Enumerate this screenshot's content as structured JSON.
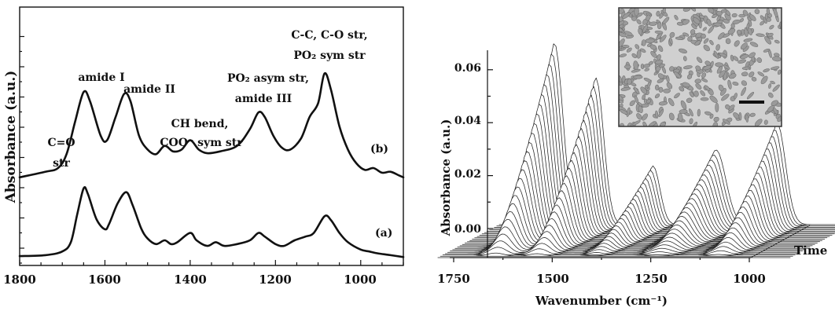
{
  "chart_data": [
    {
      "type": "line",
      "xlabel": "",
      "ylabel": "Absorbance (a.u.)",
      "xlim": [
        1800,
        900
      ],
      "x_ticks": [
        "1800",
        "1600",
        "1400",
        "1200",
        "1000"
      ],
      "y_ticks_labeled": false,
      "series": [
        {
          "name": "(a)",
          "points": [
            [
              1800,
              0.05
            ],
            [
              1740,
              0.06
            ],
            [
              1700,
              0.1
            ],
            [
              1680,
              0.2
            ],
            [
              1665,
              0.5
            ],
            [
              1650,
              0.78
            ],
            [
              1640,
              0.72
            ],
            [
              1620,
              0.45
            ],
            [
              1600,
              0.34
            ],
            [
              1590,
              0.4
            ],
            [
              1570,
              0.62
            ],
            [
              1550,
              0.74
            ],
            [
              1535,
              0.6
            ],
            [
              1515,
              0.35
            ],
            [
              1500,
              0.24
            ],
            [
              1480,
              0.18
            ],
            [
              1460,
              0.22
            ],
            [
              1445,
              0.18
            ],
            [
              1430,
              0.2
            ],
            [
              1400,
              0.3
            ],
            [
              1385,
              0.22
            ],
            [
              1360,
              0.16
            ],
            [
              1340,
              0.2
            ],
            [
              1320,
              0.16
            ],
            [
              1290,
              0.18
            ],
            [
              1260,
              0.22
            ],
            [
              1240,
              0.3
            ],
            [
              1225,
              0.26
            ],
            [
              1200,
              0.18
            ],
            [
              1180,
              0.16
            ],
            [
              1155,
              0.22
            ],
            [
              1130,
              0.26
            ],
            [
              1110,
              0.3
            ],
            [
              1085,
              0.48
            ],
            [
              1070,
              0.44
            ],
            [
              1050,
              0.3
            ],
            [
              1030,
              0.2
            ],
            [
              1000,
              0.12
            ],
            [
              980,
              0.1
            ],
            [
              960,
              0.08
            ],
            [
              930,
              0.06
            ],
            [
              900,
              0.04
            ]
          ]
        },
        {
          "name": "(b)",
          "points": [
            [
              1800,
              0.9
            ],
            [
              1740,
              0.96
            ],
            [
              1710,
              1.0
            ],
            [
              1690,
              1.15
            ],
            [
              1670,
              1.5
            ],
            [
              1650,
              1.82
            ],
            [
              1635,
              1.72
            ],
            [
              1610,
              1.35
            ],
            [
              1595,
              1.3
            ],
            [
              1575,
              1.55
            ],
            [
              1555,
              1.8
            ],
            [
              1540,
              1.72
            ],
            [
              1520,
              1.35
            ],
            [
              1500,
              1.2
            ],
            [
              1480,
              1.15
            ],
            [
              1460,
              1.24
            ],
            [
              1440,
              1.18
            ],
            [
              1420,
              1.2
            ],
            [
              1400,
              1.3
            ],
            [
              1380,
              1.2
            ],
            [
              1360,
              1.16
            ],
            [
              1330,
              1.18
            ],
            [
              1290,
              1.24
            ],
            [
              1260,
              1.42
            ],
            [
              1240,
              1.6
            ],
            [
              1225,
              1.55
            ],
            [
              1205,
              1.35
            ],
            [
              1185,
              1.22
            ],
            [
              1165,
              1.2
            ],
            [
              1140,
              1.32
            ],
            [
              1120,
              1.55
            ],
            [
              1100,
              1.7
            ],
            [
              1085,
              2.02
            ],
            [
              1070,
              1.85
            ],
            [
              1050,
              1.45
            ],
            [
              1030,
              1.2
            ],
            [
              1010,
              1.05
            ],
            [
              990,
              0.98
            ],
            [
              970,
              1.0
            ],
            [
              950,
              0.95
            ],
            [
              930,
              0.96
            ],
            [
              910,
              0.92
            ],
            [
              900,
              0.9
            ]
          ]
        }
      ],
      "series_labels": [
        "(b)",
        "(a)"
      ],
      "peak_labels": [
        {
          "lines": [
            "C=O",
            "str"
          ]
        },
        {
          "lines": [
            "amide I"
          ]
        },
        {
          "lines": [
            "amide II"
          ]
        },
        {
          "lines": [
            "CH bend,",
            "COO⁻ sym str"
          ]
        },
        {
          "lines": [
            "PO₂ asym str,",
            "amide III"
          ]
        },
        {
          "lines": [
            "C-C, C-O str,",
            "PO₂ sym str"
          ]
        }
      ]
    },
    {
      "type": "area",
      "subtype": "3d-waterfall",
      "xlabel": "Wavenumber (cm⁻¹)",
      "ylabel": "Absorbance (a.u.)",
      "zlabel": "Time",
      "xlim": [
        1750,
        900
      ],
      "ylim": [
        -0.01,
        0.07
      ],
      "x_ticks": [
        "1750",
        "1500",
        "1250",
        "1000"
      ],
      "y_ticks": [
        "0.00",
        "0.02",
        "0.04",
        "0.06"
      ],
      "n_traces": 26,
      "peaks": [
        {
          "center": 1650,
          "width": 30,
          "max_height": 0.068
        },
        {
          "center": 1545,
          "width": 28,
          "max_height": 0.055
        },
        {
          "center": 1400,
          "width": 25,
          "max_height": 0.022
        },
        {
          "center": 1240,
          "width": 35,
          "max_height": 0.028
        },
        {
          "center": 1085,
          "width": 30,
          "max_height": 0.038
        }
      ],
      "inset": "micrograph"
    }
  ]
}
